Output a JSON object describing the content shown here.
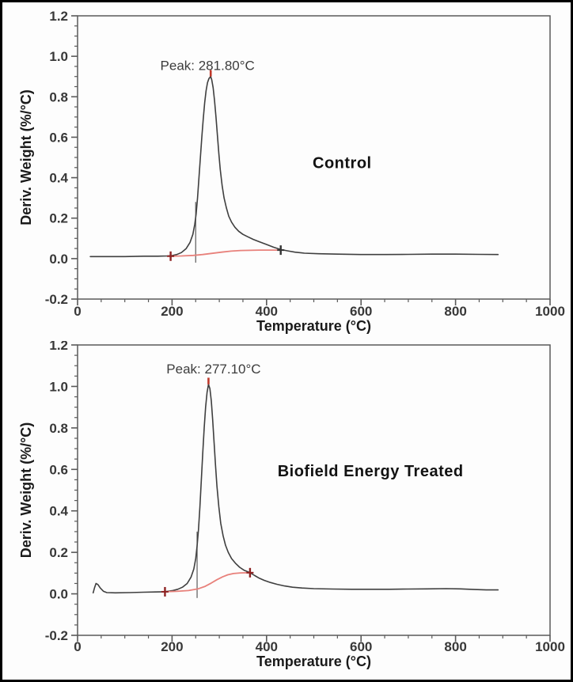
{
  "figure": {
    "background": "#fdfdfd",
    "border_color": "#000000",
    "axis_color": "#5a5a5a",
    "tick_text_color": "#383838",
    "title_text_color": "#1a1a1a"
  },
  "chart_data": [
    {
      "type": "line",
      "panel": "top",
      "series_label": "Control",
      "peak_label": "Peak: 281.80°C",
      "peak": {
        "x": 281.8,
        "y": 0.9
      },
      "xlabel": "Temperature (°C)",
      "ylabel": "Deriv. Weight (%/°C)",
      "xlim": [
        0,
        1000
      ],
      "ylim": [
        -0.2,
        1.2
      ],
      "xticks": [
        {
          "v": 0,
          "label": "0"
        },
        {
          "v": 200,
          "label": "200"
        },
        {
          "v": 400,
          "label": "400"
        },
        {
          "v": 600,
          "label": "600"
        },
        {
          "v": 800,
          "label": "800"
        },
        {
          "v": 1000,
          "label": "1000"
        }
      ],
      "yticks": [
        {
          "v": -0.2,
          "label": "-0.2"
        },
        {
          "v": 0.0,
          "label": "0.0"
        },
        {
          "v": 0.2,
          "label": "0.2"
        },
        {
          "v": 0.4,
          "label": "0.4"
        },
        {
          "v": 0.6,
          "label": "0.6"
        },
        {
          "v": 0.8,
          "label": "0.8"
        },
        {
          "v": 1.0,
          "label": "1.0"
        },
        {
          "v": 1.2,
          "label": "1.2"
        }
      ],
      "x_minor_step": 50,
      "y_minor_step": 0.05,
      "grid": false,
      "legend": "none",
      "series": [
        {
          "name": "dtg-curve",
          "color": "#3f3f3f",
          "width": 1.6,
          "points": [
            [
              27,
              0.01
            ],
            [
              60,
              0.01
            ],
            [
              100,
              0.01
            ],
            [
              140,
              0.012
            ],
            [
              170,
              0.012
            ],
            [
              190,
              0.013
            ],
            [
              200,
              0.015
            ],
            [
              210,
              0.02
            ],
            [
              220,
              0.03
            ],
            [
              230,
              0.05
            ],
            [
              238,
              0.08
            ],
            [
              244,
              0.12
            ],
            [
              248,
              0.17
            ],
            [
              251,
              0.22
            ],
            [
              254,
              0.3
            ],
            [
              257,
              0.4
            ],
            [
              260,
              0.5
            ],
            [
              263,
              0.6
            ],
            [
              266,
              0.69
            ],
            [
              269,
              0.77
            ],
            [
              272,
              0.83
            ],
            [
              275,
              0.87
            ],
            [
              278,
              0.89
            ],
            [
              281.8,
              0.9
            ],
            [
              284,
              0.885
            ],
            [
              287,
              0.845
            ],
            [
              290,
              0.78
            ],
            [
              293,
              0.7
            ],
            [
              296,
              0.61
            ],
            [
              299,
              0.52
            ],
            [
              302,
              0.44
            ],
            [
              306,
              0.36
            ],
            [
              310,
              0.3
            ],
            [
              315,
              0.25
            ],
            [
              320,
              0.21
            ],
            [
              326,
              0.18
            ],
            [
              333,
              0.155
            ],
            [
              341,
              0.135
            ],
            [
              350,
              0.12
            ],
            [
              360,
              0.108
            ],
            [
              372,
              0.095
            ],
            [
              385,
              0.083
            ],
            [
              400,
              0.07
            ],
            [
              415,
              0.056
            ],
            [
              430,
              0.045
            ],
            [
              445,
              0.038
            ],
            [
              460,
              0.032
            ],
            [
              480,
              0.027
            ],
            [
              510,
              0.024
            ],
            [
              550,
              0.022
            ],
            [
              600,
              0.02
            ],
            [
              650,
              0.02
            ],
            [
              700,
              0.021
            ],
            [
              750,
              0.022
            ],
            [
              800,
              0.022
            ],
            [
              850,
              0.021
            ],
            [
              890,
              0.02
            ]
          ]
        },
        {
          "name": "integration-baseline",
          "color": "#e8817b",
          "width": 1.8,
          "points": [
            [
              197,
              0.012
            ],
            [
              220,
              0.013
            ],
            [
              245,
              0.016
            ],
            [
              265,
              0.02
            ],
            [
              285,
              0.026
            ],
            [
              305,
              0.032
            ],
            [
              325,
              0.037
            ],
            [
              345,
              0.04
            ],
            [
              365,
              0.041
            ],
            [
              385,
              0.042
            ],
            [
              405,
              0.042
            ],
            [
              430,
              0.042
            ]
          ]
        }
      ],
      "markers": [
        {
          "x": 197,
          "y": 0.012,
          "color": "#8e2323"
        },
        {
          "x": 430,
          "y": 0.042,
          "color": "#333333"
        }
      ],
      "peak_tick": {
        "x": 281.8,
        "y1": 0.9,
        "y2": 0.932,
        "color": "#c0392b"
      },
      "onset_line": {
        "x": 250,
        "y1": -0.02,
        "y2": 0.28,
        "color": "#5a5a5a"
      },
      "annotations": [
        {
          "kind": "peak-label",
          "text": "Peak: 281.80°C",
          "x": 275,
          "y": 0.955
        },
        {
          "kind": "series-label",
          "text": "Control",
          "x": 560,
          "y": 0.47
        }
      ]
    },
    {
      "type": "line",
      "panel": "bottom",
      "series_label": "Biofield Energy Treated",
      "peak_label": "Peak: 277.10°C",
      "peak": {
        "x": 277.1,
        "y": 1.01
      },
      "xlabel": "Temperature (°C)",
      "ylabel": "Deriv. Weight (%/°C)",
      "xlim": [
        0,
        1000
      ],
      "ylim": [
        -0.2,
        1.2
      ],
      "xticks": [
        {
          "v": 0,
          "label": "0"
        },
        {
          "v": 200,
          "label": "200"
        },
        {
          "v": 400,
          "label": "400"
        },
        {
          "v": 600,
          "label": "600"
        },
        {
          "v": 800,
          "label": "800"
        },
        {
          "v": 1000,
          "label": "1000"
        }
      ],
      "yticks": [
        {
          "v": -0.2,
          "label": "-0.2"
        },
        {
          "v": 0.0,
          "label": "0.0"
        },
        {
          "v": 0.2,
          "label": "0.2"
        },
        {
          "v": 0.4,
          "label": "0.4"
        },
        {
          "v": 0.6,
          "label": "0.6"
        },
        {
          "v": 0.8,
          "label": "0.8"
        },
        {
          "v": 1.0,
          "label": "1.0"
        },
        {
          "v": 1.2,
          "label": "1.2"
        }
      ],
      "x_minor_step": 50,
      "y_minor_step": 0.05,
      "grid": false,
      "legend": "none",
      "series": [
        {
          "name": "dtg-curve",
          "color": "#3f3f3f",
          "width": 1.6,
          "points": [
            [
              33,
              0.005
            ],
            [
              36,
              0.03
            ],
            [
              39,
              0.05
            ],
            [
              43,
              0.045
            ],
            [
              48,
              0.028
            ],
            [
              55,
              0.012
            ],
            [
              62,
              0.006
            ],
            [
              80,
              0.005
            ],
            [
              110,
              0.006
            ],
            [
              140,
              0.008
            ],
            [
              165,
              0.009
            ],
            [
              185,
              0.01
            ],
            [
              200,
              0.015
            ],
            [
              212,
              0.022
            ],
            [
              222,
              0.032
            ],
            [
              232,
              0.05
            ],
            [
              240,
              0.08
            ],
            [
              246,
              0.12
            ],
            [
              250,
              0.17
            ],
            [
              253,
              0.23
            ],
            [
              256,
              0.31
            ],
            [
              259,
              0.42
            ],
            [
              262,
              0.55
            ],
            [
              265,
              0.68
            ],
            [
              268,
              0.8
            ],
            [
              271,
              0.9
            ],
            [
              274,
              0.97
            ],
            [
              277.1,
              1.01
            ],
            [
              280,
              0.99
            ],
            [
              283,
              0.93
            ],
            [
              286,
              0.84
            ],
            [
              289,
              0.73
            ],
            [
              292,
              0.62
            ],
            [
              295,
              0.52
            ],
            [
              299,
              0.42
            ],
            [
              303,
              0.34
            ],
            [
              308,
              0.28
            ],
            [
              313,
              0.235
            ],
            [
              319,
              0.2
            ],
            [
              326,
              0.17
            ],
            [
              334,
              0.148
            ],
            [
              343,
              0.128
            ],
            [
              353,
              0.113
            ],
            [
              365,
              0.102
            ],
            [
              375,
              0.088
            ],
            [
              385,
              0.075
            ],
            [
              395,
              0.065
            ],
            [
              408,
              0.055
            ],
            [
              422,
              0.046
            ],
            [
              438,
              0.038
            ],
            [
              455,
              0.032
            ],
            [
              475,
              0.028
            ],
            [
              500,
              0.025
            ],
            [
              540,
              0.023
            ],
            [
              580,
              0.022
            ],
            [
              620,
              0.022
            ],
            [
              660,
              0.022
            ],
            [
              700,
              0.023
            ],
            [
              740,
              0.024
            ],
            [
              780,
              0.025
            ],
            [
              810,
              0.024
            ],
            [
              840,
              0.021
            ],
            [
              865,
              0.019
            ],
            [
              890,
              0.019
            ]
          ]
        },
        {
          "name": "integration-baseline",
          "color": "#e8817b",
          "width": 1.8,
          "points": [
            [
              185,
              0.01
            ],
            [
              210,
              0.012
            ],
            [
              235,
              0.016
            ],
            [
              255,
              0.024
            ],
            [
              270,
              0.036
            ],
            [
              283,
              0.052
            ],
            [
              295,
              0.068
            ],
            [
              307,
              0.082
            ],
            [
              318,
              0.092
            ],
            [
              330,
              0.098
            ],
            [
              345,
              0.101
            ],
            [
              365,
              0.102
            ]
          ]
        }
      ],
      "markers": [
        {
          "x": 185,
          "y": 0.01,
          "color": "#8e2323"
        },
        {
          "x": 365,
          "y": 0.102,
          "color": "#8e2323"
        }
      ],
      "peak_tick": {
        "x": 277.1,
        "y1": 1.01,
        "y2": 1.042,
        "color": "#c0392b"
      },
      "onset_line": {
        "x": 253,
        "y1": -0.02,
        "y2": 0.3,
        "color": "#5a5a5a"
      },
      "annotations": [
        {
          "kind": "peak-label",
          "text": "Peak: 277.10°C",
          "x": 288,
          "y": 1.085
        },
        {
          "kind": "series-label",
          "text": "Biofield Energy Treated",
          "x": 620,
          "y": 0.59
        }
      ]
    }
  ]
}
